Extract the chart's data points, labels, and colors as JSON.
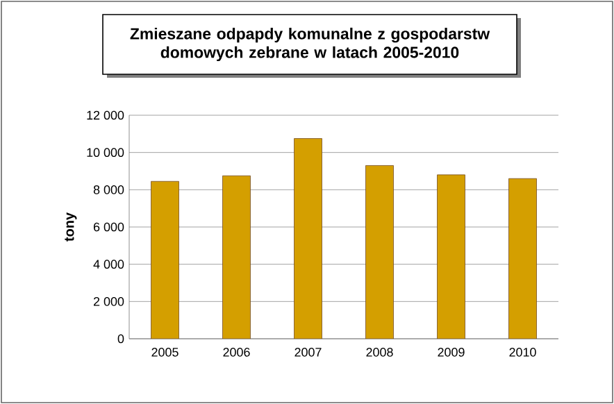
{
  "chart_data": {
    "type": "bar",
    "title": "Zmieszane odpapdy komunalne z gospodarstw domowych zebrane w latach 2005-2010",
    "ylabel": "tony",
    "categories": [
      "2005",
      "2006",
      "2007",
      "2008",
      "2009",
      "2010"
    ],
    "values": [
      8450,
      8750,
      10750,
      9300,
      8800,
      8600
    ],
    "color": "#d49f00",
    "ylim": [
      0,
      12000
    ],
    "yticks": [
      {
        "value": 0,
        "label": "0"
      },
      {
        "value": 2000,
        "label": "2 000"
      },
      {
        "value": 4000,
        "label": "4 000"
      },
      {
        "value": 6000,
        "label": "6 000"
      },
      {
        "value": 8000,
        "label": "8 000"
      },
      {
        "value": 10000,
        "label": "10 000"
      },
      {
        "value": 12000,
        "label": "12 000"
      }
    ],
    "grid": "y"
  }
}
